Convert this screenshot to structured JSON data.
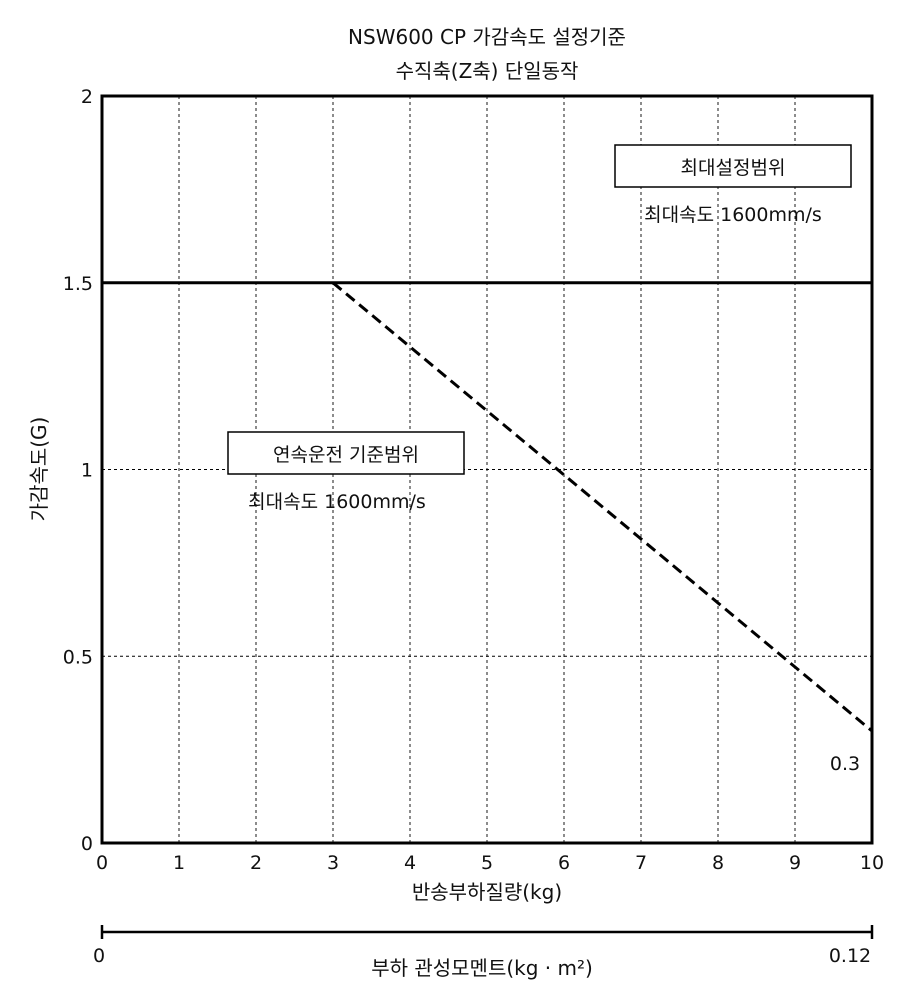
{
  "chart_data": {
    "type": "line",
    "title": "NSW600 CP 가감속도 설정기준",
    "subtitle": "수직축(Z축) 단일동작",
    "xlabel": "반송부하질량(kg)",
    "ylabel": "가감속도(G)",
    "xlim": [
      0,
      10
    ],
    "ylim": [
      0,
      2
    ],
    "x_ticks": [
      "0",
      "1",
      "2",
      "3",
      "4",
      "5",
      "6",
      "7",
      "8",
      "9",
      "10"
    ],
    "y_ticks": [
      "0",
      "0.5",
      "1",
      "1.5",
      "2"
    ],
    "grid": true,
    "series": [
      {
        "style": "solid",
        "x": [
          0,
          10
        ],
        "y": [
          1.5,
          1.5
        ]
      },
      {
        "style": "dashed",
        "x": [
          3,
          10
        ],
        "y": [
          1.5,
          0.3
        ]
      }
    ],
    "end_value_label": "0.3",
    "regions": [
      {
        "box_label": "최대설정범위",
        "note": "최대속도 1600mm/s"
      },
      {
        "box_label": "연속운전 기준범위",
        "note": "최대속도 1600mm/s"
      }
    ],
    "secondary_axis": {
      "label": "부하 관성모멘트(kg · m²)",
      "min_label": "0",
      "max_label": "0.12"
    }
  }
}
